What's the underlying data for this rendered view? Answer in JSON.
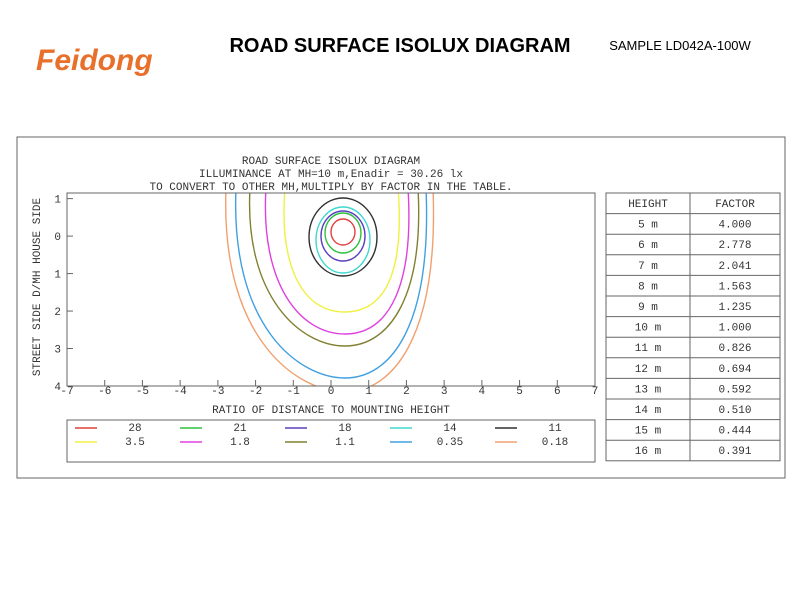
{
  "header": {
    "brand": "Feidong",
    "title": "ROAD SURFACE ISOLUX DIAGRAM",
    "sample": "SAMPLE  LD042A-100W"
  },
  "diagram": {
    "title": "ROAD SURFACE ISOLUX DIAGRAM",
    "subtitle": "ILLUMINANCE AT MH=10 m,Enadir  = 30.26 lx",
    "note": "TO CONVERT TO OTHER MH,MULTIPLY BY FACTOR IN THE TABLE.",
    "xlabel": "RATIO OF DISTANCE TO MOUNTING HEIGHT",
    "ylabel": "STREET SIDE  D/MH  HOUSE SIDE",
    "xlim": [
      -7,
      7
    ],
    "xticks": [
      -7,
      -6,
      -5,
      -4,
      -3,
      -2,
      -1,
      0,
      1,
      2,
      3,
      4,
      5,
      6,
      7
    ],
    "ylim": [
      -1.15,
      4
    ],
    "yticks": [
      {
        "value": -1,
        "label": "1"
      },
      0,
      1,
      2,
      3,
      4
    ],
    "levels": [
      {
        "value": 28,
        "color": "#e0403a"
      },
      {
        "value": 21,
        "color": "#30c040"
      },
      {
        "value": 18,
        "color": "#5a40c0"
      },
      {
        "value": 14,
        "color": "#40d8d0"
      },
      {
        "value": 11,
        "color": "#303030"
      },
      {
        "value": 3.5,
        "color": "#f0f040"
      },
      {
        "value": 1.8,
        "color": "#e040e0"
      },
      {
        "value": 1.1,
        "color": "#808030"
      },
      {
        "value": 0.35,
        "color": "#40a0e0"
      },
      {
        "value": 0.18,
        "color": "#f0a070"
      }
    ]
  },
  "table": {
    "header": [
      "HEIGHT",
      "FACTOR"
    ],
    "rows": [
      [
        "5 m",
        "4.000"
      ],
      [
        "6 m",
        "2.778"
      ],
      [
        "7 m",
        "2.041"
      ],
      [
        "8 m",
        "1.563"
      ],
      [
        "9 m",
        "1.235"
      ],
      [
        "10 m",
        "1.000"
      ],
      [
        "11 m",
        "0.826"
      ],
      [
        "12 m",
        "0.694"
      ],
      [
        "13 m",
        "0.592"
      ],
      [
        "14 m",
        "0.510"
      ],
      [
        "15 m",
        "0.444"
      ],
      [
        "16 m",
        "0.391"
      ]
    ]
  }
}
